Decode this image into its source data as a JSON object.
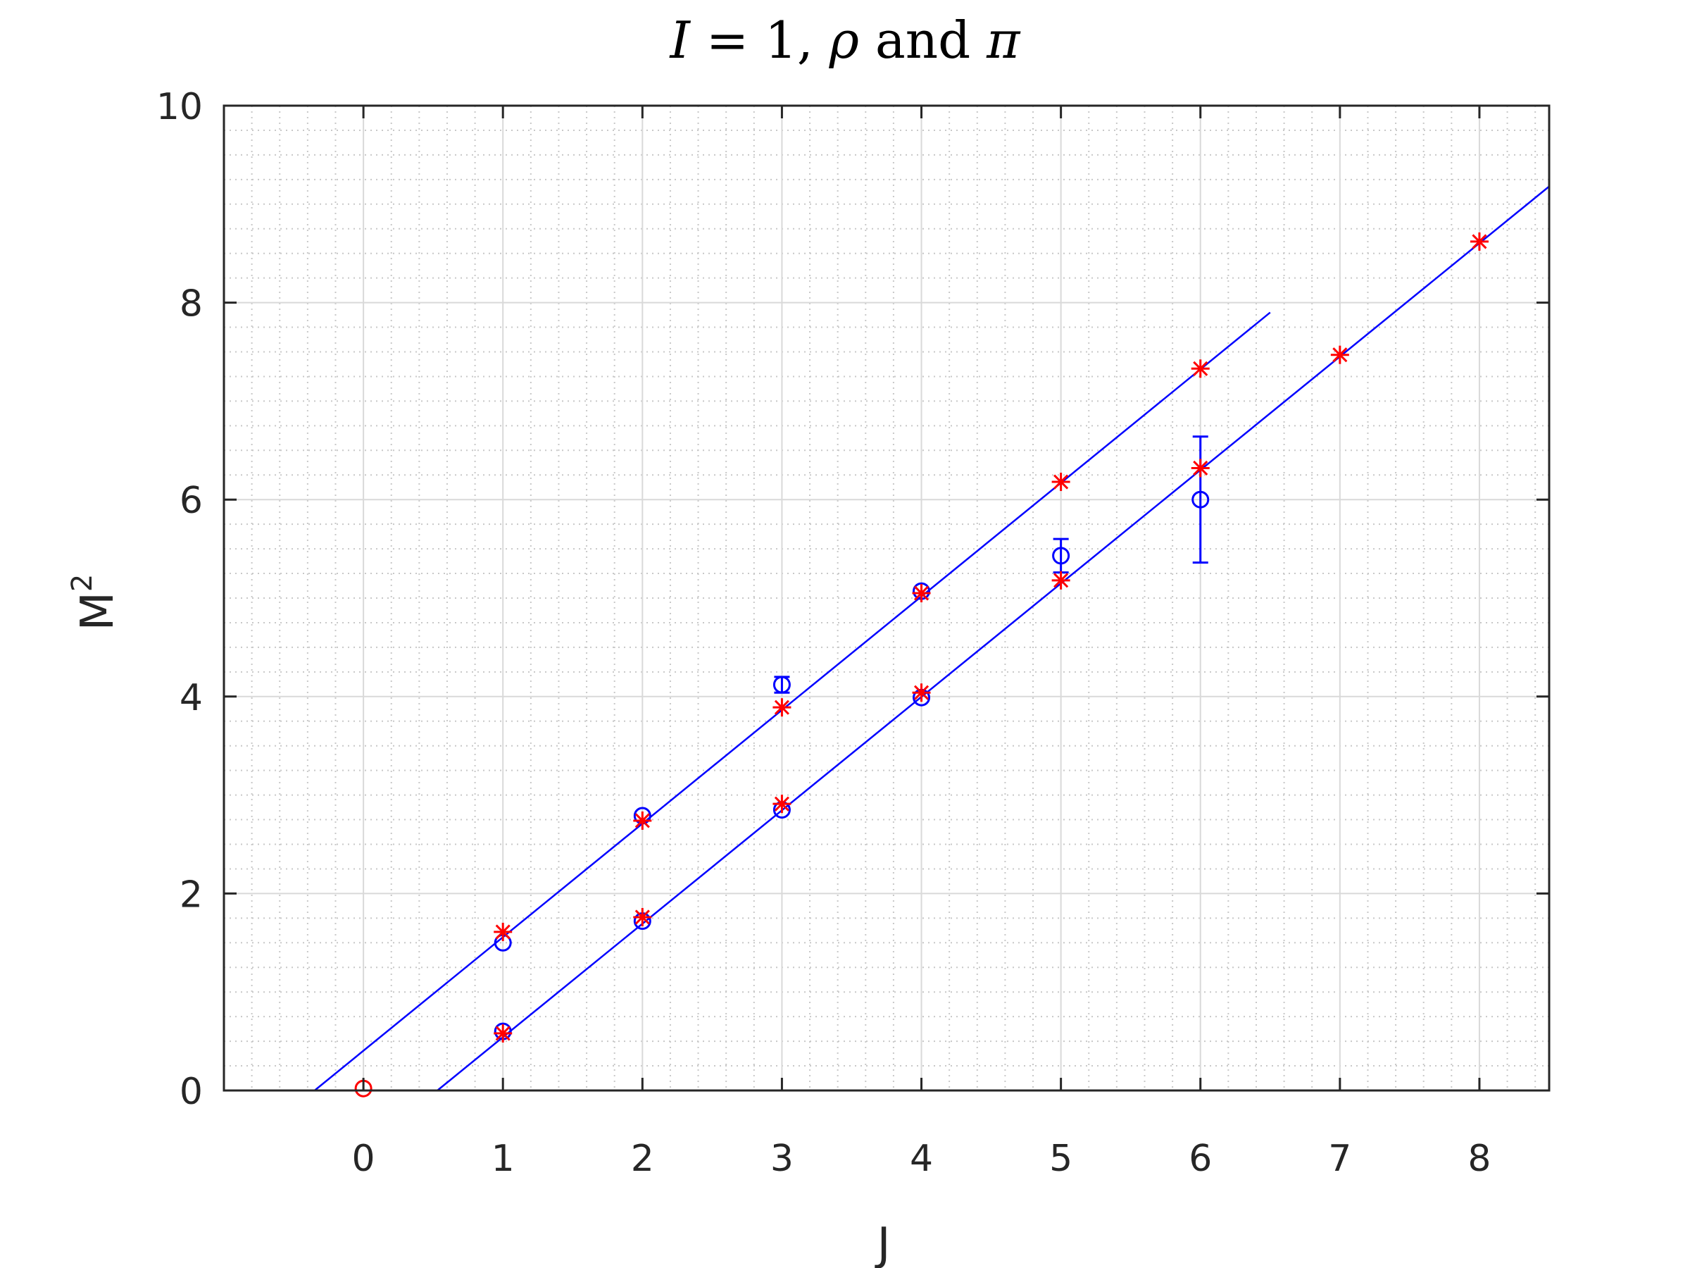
{
  "chart_data": {
    "type": "scatter",
    "title_parts": [
      {
        "text": "I",
        "italic": true
      },
      {
        "text": " = 1, ",
        "italic": false
      },
      {
        "text": "ρ",
        "italic": true
      },
      {
        "text": " and ",
        "italic": false
      },
      {
        "text": "π",
        "italic": true
      }
    ],
    "xlabel": "J",
    "ylabel": "M",
    "ylabel_sup": "2",
    "xlim": [
      -1,
      8.5
    ],
    "ylim": [
      0,
      10
    ],
    "xticks": [
      0,
      1,
      2,
      3,
      4,
      5,
      6,
      7,
      8
    ],
    "yticks": [
      0,
      2,
      4,
      6,
      8,
      10
    ],
    "grid": true,
    "minor_grid": true,
    "colors": {
      "fit": "#0000ff",
      "calc": "#ff0000",
      "exp": "#0000ff",
      "axis": "#262626"
    },
    "fit_lines": [
      {
        "name": "",
        "x": [
          -0.35,
          6.5
        ],
        "y": [
          0.0,
          7.9
        ]
      },
      {
        "name": "",
        "x": [
          0.53,
          8.5
        ],
        "y": [
          0.0,
          9.18
        ]
      }
    ],
    "experimental": [
      {
        "x": 1,
        "y": 0.6,
        "err": 0.0
      },
      {
        "x": 1,
        "y": 1.5,
        "err": 0.0
      },
      {
        "x": 2,
        "y": 1.72,
        "err": 0.0
      },
      {
        "x": 2,
        "y": 2.79,
        "err": 0.0
      },
      {
        "x": 3,
        "y": 2.85,
        "err": 0.0
      },
      {
        "x": 3,
        "y": 4.12,
        "err": 0.08
      },
      {
        "x": 4,
        "y": 3.99,
        "err": 0.0
      },
      {
        "x": 4,
        "y": 5.07,
        "err": 0.0
      },
      {
        "x": 5,
        "y": 5.43,
        "err": 0.17
      },
      {
        "x": 6,
        "y": 6.0,
        "err": 0.64
      }
    ],
    "calculated": [
      {
        "x": 1,
        "y": 0.58
      },
      {
        "x": 1,
        "y": 1.61
      },
      {
        "x": 2,
        "y": 1.76
      },
      {
        "x": 2,
        "y": 2.74
      },
      {
        "x": 3,
        "y": 2.91
      },
      {
        "x": 3,
        "y": 3.89
      },
      {
        "x": 4,
        "y": 4.04
      },
      {
        "x": 4,
        "y": 5.05
      },
      {
        "x": 5,
        "y": 5.18
      },
      {
        "x": 5,
        "y": 6.18
      },
      {
        "x": 6,
        "y": 6.32
      },
      {
        "x": 6,
        "y": 7.33
      },
      {
        "x": 7,
        "y": 7.47
      },
      {
        "x": 8,
        "y": 8.62
      }
    ],
    "calculated_circle": [
      {
        "x": 0,
        "y": 0.02
      }
    ]
  }
}
